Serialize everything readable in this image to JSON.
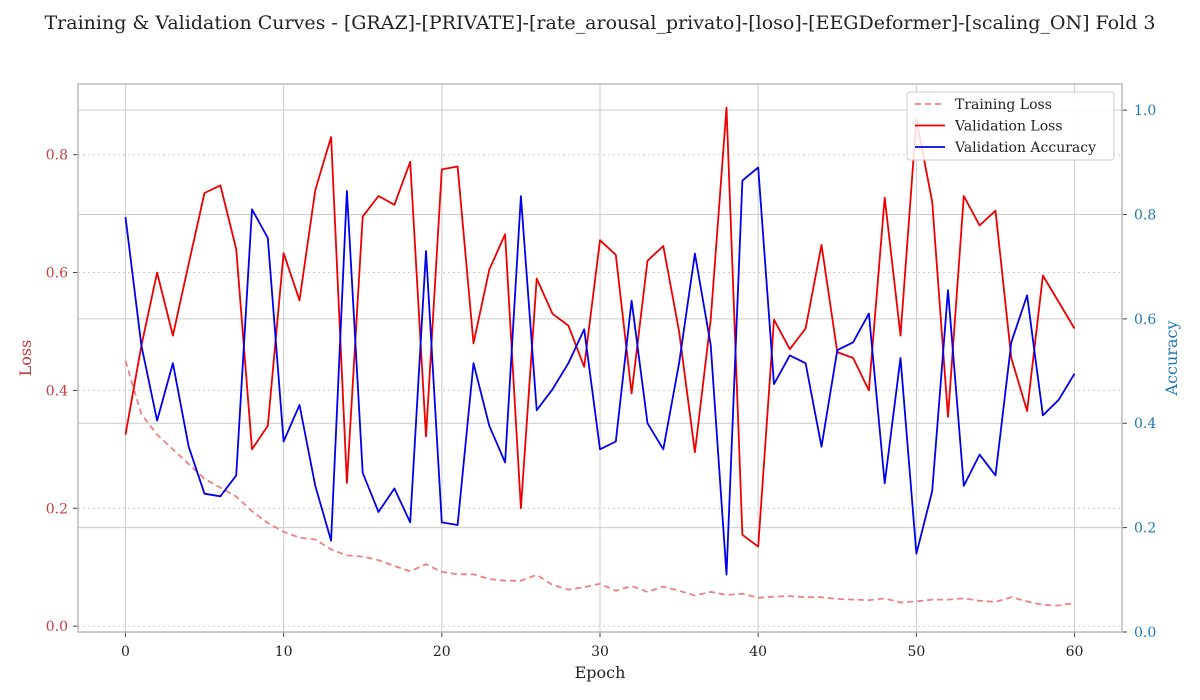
{
  "chart_data": {
    "type": "line",
    "title": "Training & Validation Curves - [GRAZ]-[PRIVATE]-[rate_arousal_privato]-[loso]-[EEGDeformer]-[scaling_ON] Fold 3",
    "xlabel": "Epoch",
    "ylabel_left": "Loss",
    "ylabel_right": "Accuracy",
    "xlim": [
      -3,
      63
    ],
    "ylim_left": [
      -0.01,
      0.92
    ],
    "ylim_right": [
      0,
      1.05
    ],
    "x_ticks": [
      0,
      10,
      20,
      30,
      40,
      50,
      60
    ],
    "y_ticks_left": [
      "0.0",
      "0.2",
      "0.4",
      "0.6",
      "0.8"
    ],
    "y_ticks_right": [
      "0.0",
      "0.2",
      "0.4",
      "0.6",
      "0.8",
      "1.0"
    ],
    "grid": true,
    "legend_position": "top-right",
    "colors": {
      "training_loss": "#f08080",
      "validation_loss": "#ee0000",
      "validation_accuracy": "#0000ee",
      "left_axis": "#c43b3b",
      "right_axis": "#1f77b4",
      "grid": "#cccccc",
      "frame": "#bbbbbb"
    },
    "x": [
      0,
      1,
      2,
      3,
      4,
      5,
      6,
      7,
      8,
      9,
      10,
      11,
      12,
      13,
      14,
      15,
      16,
      17,
      18,
      19,
      20,
      21,
      22,
      23,
      24,
      25,
      26,
      27,
      28,
      29,
      30,
      31,
      32,
      33,
      34,
      35,
      36,
      37,
      38,
      39,
      40,
      41,
      42,
      43,
      44,
      45,
      46,
      47,
      48,
      49,
      50,
      51,
      52,
      53,
      54,
      55,
      56,
      57,
      58,
      59,
      60
    ],
    "series": [
      {
        "name": "Training Loss",
        "axis": "left",
        "style": "dashed",
        "values": [
          0.45,
          0.36,
          0.325,
          0.3,
          0.275,
          0.25,
          0.235,
          0.22,
          0.195,
          0.175,
          0.16,
          0.15,
          0.147,
          0.13,
          0.12,
          0.118,
          0.112,
          0.102,
          0.093,
          0.105,
          0.092,
          0.088,
          0.088,
          0.08,
          0.077,
          0.077,
          0.087,
          0.07,
          0.062,
          0.066,
          0.072,
          0.06,
          0.068,
          0.058,
          0.067,
          0.06,
          0.052,
          0.058,
          0.053,
          0.055,
          0.048,
          0.05,
          0.051,
          0.049,
          0.049,
          0.046,
          0.045,
          0.044,
          0.047,
          0.04,
          0.042,
          0.045,
          0.045,
          0.047,
          0.043,
          0.041,
          0.049,
          0.042,
          0.036,
          0.035,
          0.039
        ]
      },
      {
        "name": "Validation Loss",
        "axis": "left",
        "style": "solid",
        "values": [
          0.325,
          0.475,
          0.6,
          0.493,
          0.615,
          0.735,
          0.748,
          0.64,
          0.3,
          0.34,
          0.633,
          0.553,
          0.74,
          0.83,
          0.243,
          0.695,
          0.73,
          0.715,
          0.788,
          0.322,
          0.775,
          0.78,
          0.48,
          0.605,
          0.665,
          0.2,
          0.59,
          0.53,
          0.51,
          0.44,
          0.655,
          0.63,
          0.395,
          0.62,
          0.645,
          0.5,
          0.295,
          0.52,
          0.88,
          0.155,
          0.135,
          0.52,
          0.47,
          0.505,
          0.647,
          0.465,
          0.455,
          0.4,
          0.727,
          0.493,
          0.86,
          0.72,
          0.355,
          0.73,
          0.68,
          0.705,
          0.455,
          0.365,
          0.595,
          0.55,
          0.505
        ]
      },
      {
        "name": "Validation Accuracy",
        "axis": "right",
        "style": "solid",
        "values": [
          0.795,
          0.55,
          0.405,
          0.515,
          0.355,
          0.265,
          0.26,
          0.3,
          0.81,
          0.755,
          0.365,
          0.435,
          0.28,
          0.175,
          0.845,
          0.305,
          0.23,
          0.275,
          0.21,
          0.73,
          0.21,
          0.205,
          0.515,
          0.395,
          0.325,
          0.835,
          0.425,
          0.465,
          0.515,
          0.58,
          0.35,
          0.365,
          0.635,
          0.4,
          0.35,
          0.515,
          0.725,
          0.55,
          0.11,
          0.865,
          0.89,
          0.475,
          0.53,
          0.515,
          0.355,
          0.54,
          0.555,
          0.61,
          0.285,
          0.525,
          0.15,
          0.27,
          0.655,
          0.28,
          0.34,
          0.3,
          0.555,
          0.645,
          0.415,
          0.445,
          0.495
        ]
      }
    ]
  }
}
